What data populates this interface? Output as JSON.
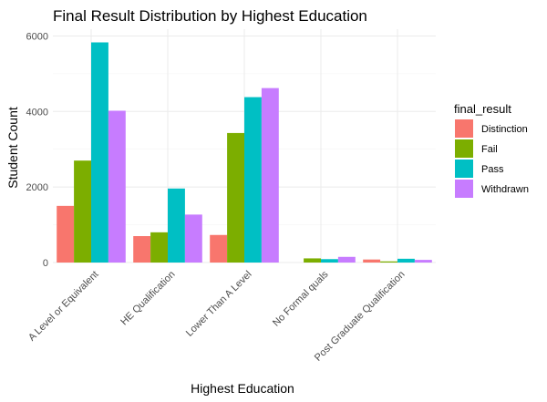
{
  "chart_data": {
    "type": "bar",
    "title": "Final Result Distribution by Highest Education",
    "xlabel": "Highest Education",
    "ylabel": "Student Count",
    "categories": [
      "A Level or Equivalent",
      "HE Qualification",
      "Lower Than A Level",
      "No Formal quals",
      "Post Graduate Qualification"
    ],
    "series": [
      {
        "name": "Distinction",
        "color": "#F8766D",
        "values": [
          1500,
          700,
          730,
          0,
          80
        ]
      },
      {
        "name": "Fail",
        "color": "#7CAE00",
        "values": [
          2700,
          800,
          3430,
          110,
          30
        ]
      },
      {
        "name": "Pass",
        "color": "#00BFC4",
        "values": [
          5830,
          1960,
          4380,
          90,
          100
        ]
      },
      {
        "name": "Withdrawn",
        "color": "#C77CFF",
        "values": [
          4020,
          1270,
          4620,
          150,
          70
        ]
      }
    ],
    "ylim": [
      0,
      6180
    ],
    "yticks": [
      0,
      2000,
      4000,
      6000
    ],
    "grid": true,
    "legend_title": "final_result",
    "legend_position": "right"
  }
}
